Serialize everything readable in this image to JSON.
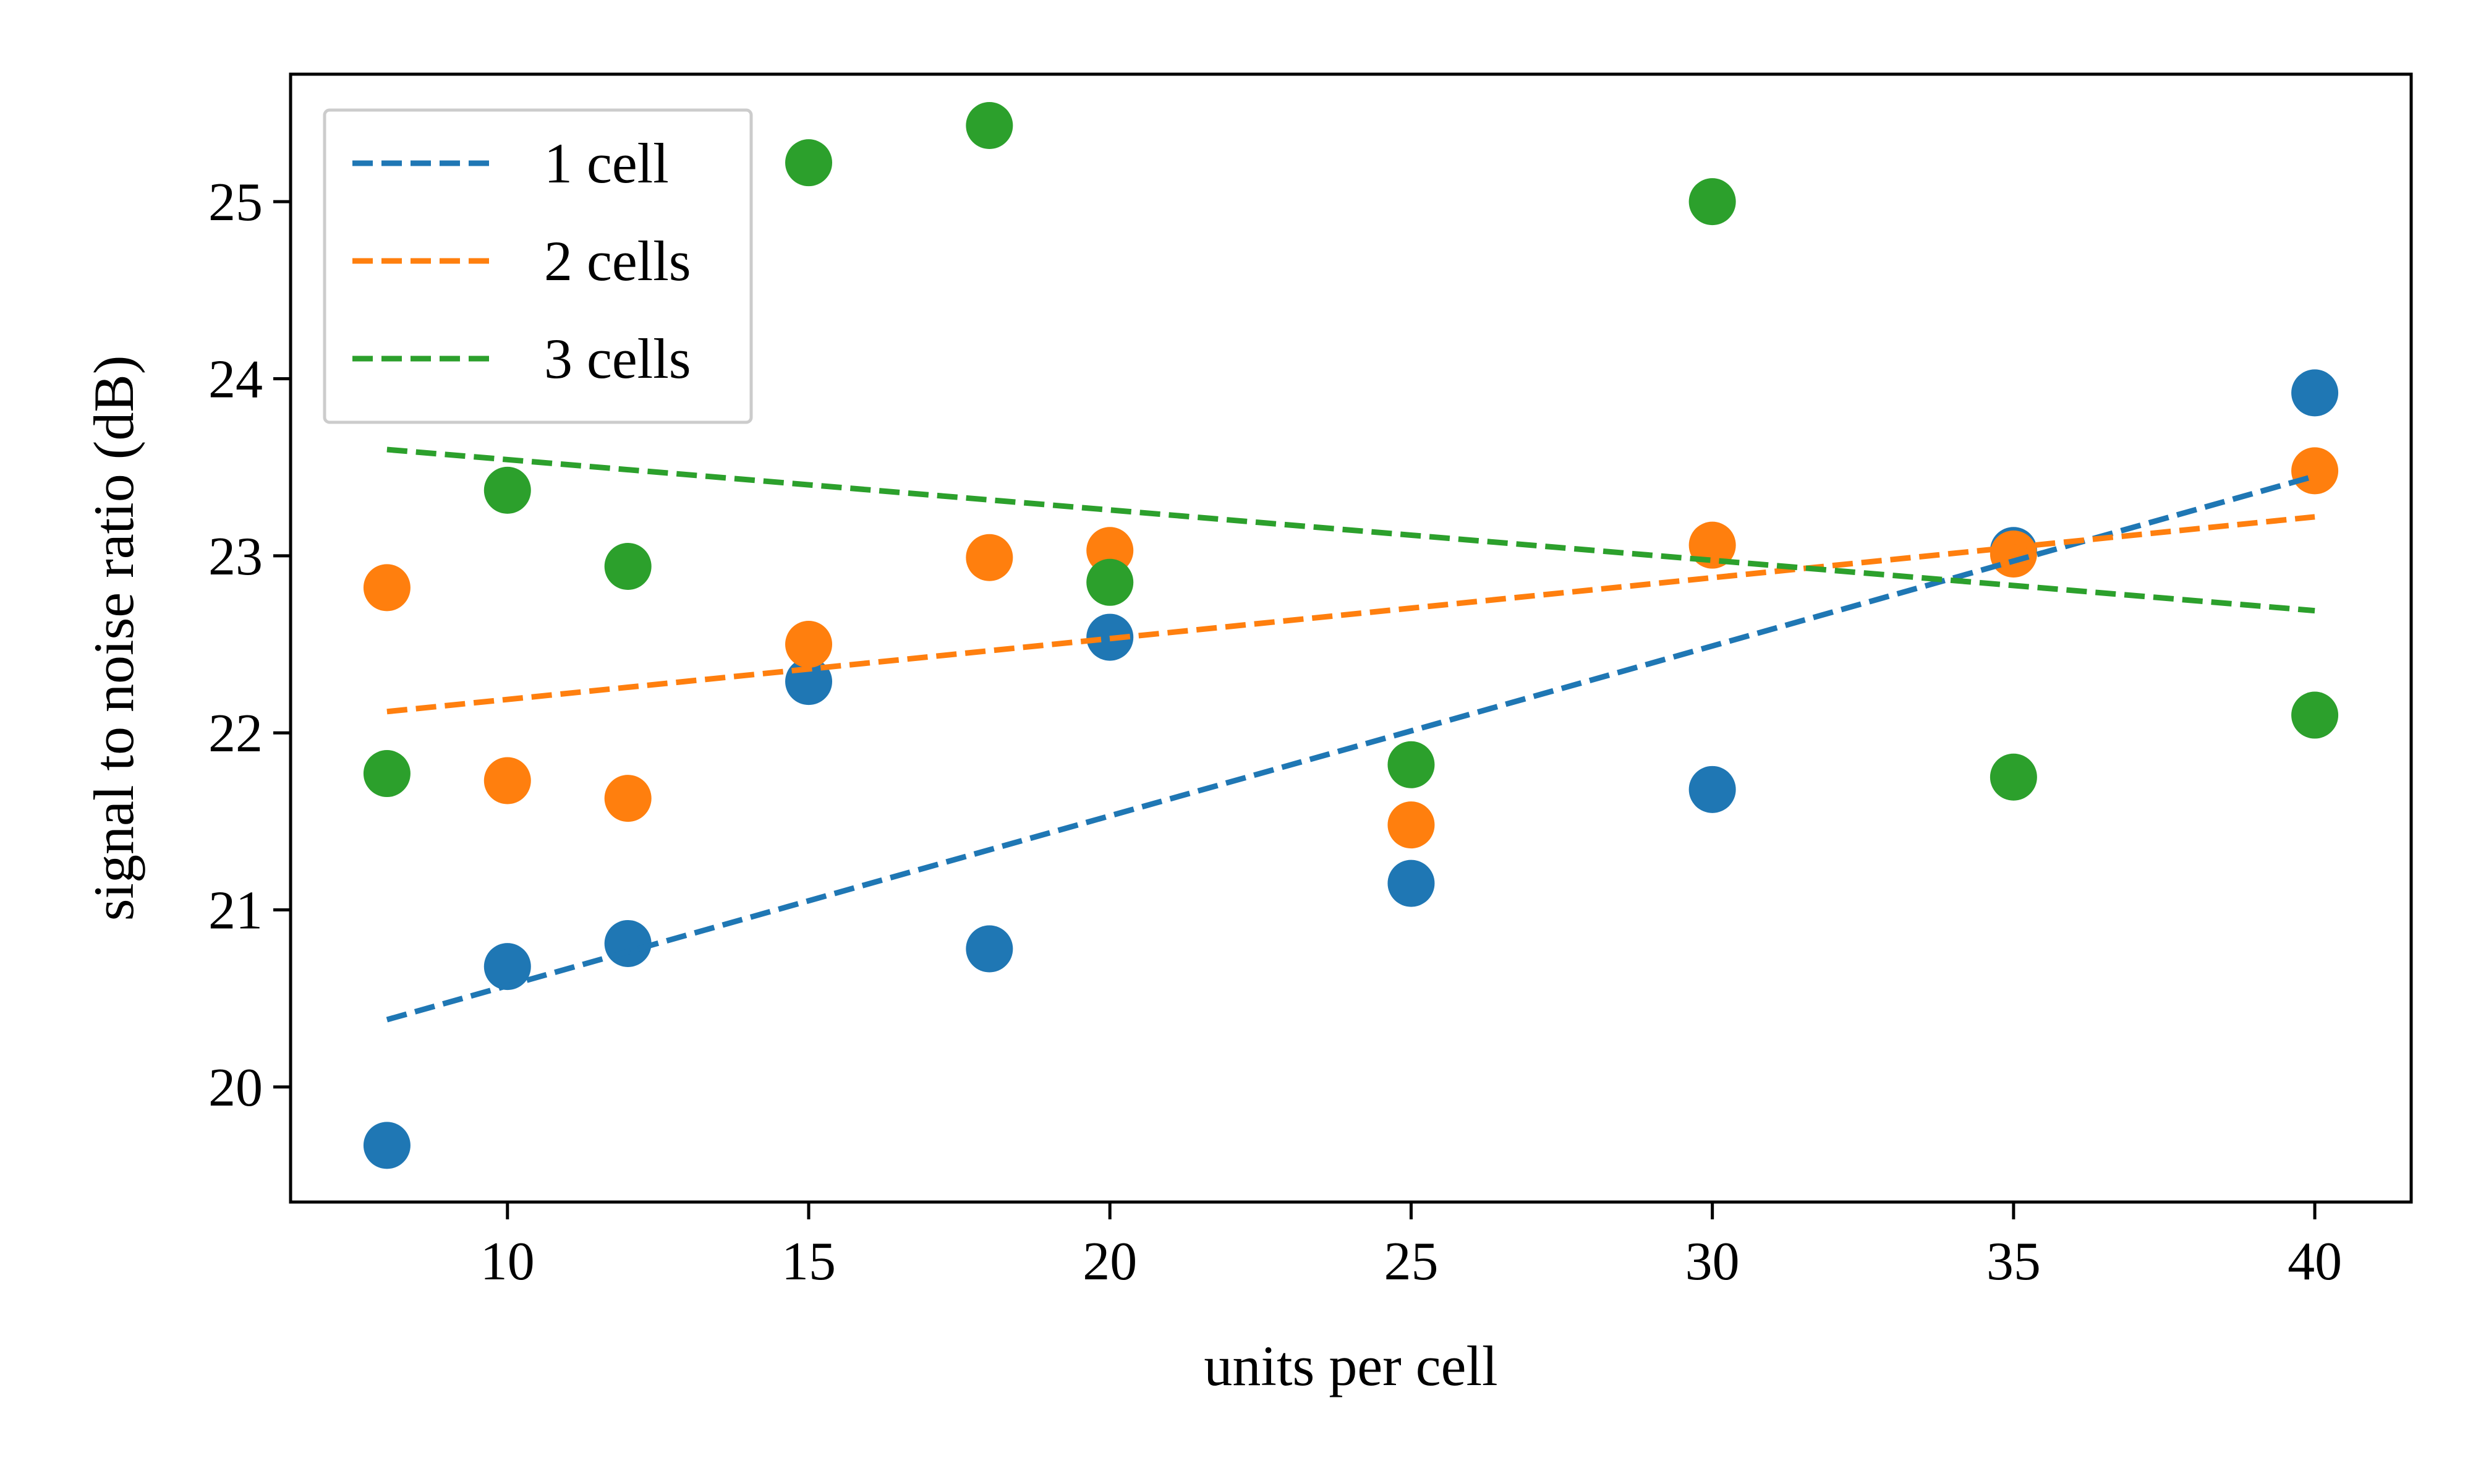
{
  "chart_data": {
    "type": "scatter",
    "xlabel": "units per cell",
    "ylabel": "signal to noise ratio (dB)",
    "xlim": [
      6.4,
      41.6
    ],
    "ylim": [
      19.35,
      25.72
    ],
    "x_ticks": [
      10,
      15,
      20,
      25,
      30,
      35,
      40
    ],
    "y_ticks": [
      20,
      21,
      22,
      23,
      24,
      25
    ],
    "grid": false,
    "legend_position": "top-left",
    "series": [
      {
        "name": "1 cell",
        "color": "#1f77b4",
        "points": [
          {
            "x": 8,
            "y": 19.67
          },
          {
            "x": 10,
            "y": 20.68
          },
          {
            "x": 12,
            "y": 20.81
          },
          {
            "x": 15,
            "y": 22.29
          },
          {
            "x": 18,
            "y": 20.78
          },
          {
            "x": 20,
            "y": 22.54
          },
          {
            "x": 25,
            "y": 21.15
          },
          {
            "x": 30,
            "y": 21.68
          },
          {
            "x": 35,
            "y": 23.03
          },
          {
            "x": 40,
            "y": 23.92
          }
        ],
        "fit": {
          "x": [
            8,
            40
          ],
          "y": [
            20.38,
            23.45
          ]
        }
      },
      {
        "name": "2 cells",
        "color": "#ff7f0e",
        "points": [
          {
            "x": 8,
            "y": 22.82
          },
          {
            "x": 10,
            "y": 21.73
          },
          {
            "x": 12,
            "y": 21.63
          },
          {
            "x": 15,
            "y": 22.5
          },
          {
            "x": 18,
            "y": 22.99
          },
          {
            "x": 20,
            "y": 23.03
          },
          {
            "x": 25,
            "y": 21.48
          },
          {
            "x": 30,
            "y": 23.06
          },
          {
            "x": 35,
            "y": 23.01
          },
          {
            "x": 40,
            "y": 23.48
          }
        ],
        "fit": {
          "x": [
            8,
            40
          ],
          "y": [
            22.12,
            23.22
          ]
        }
      },
      {
        "name": "3 cells",
        "color": "#2ca02c",
        "points": [
          {
            "x": 8,
            "y": 21.77
          },
          {
            "x": 10,
            "y": 23.37
          },
          {
            "x": 12,
            "y": 22.94
          },
          {
            "x": 15,
            "y": 25.22
          },
          {
            "x": 18,
            "y": 25.43
          },
          {
            "x": 20,
            "y": 22.85
          },
          {
            "x": 25,
            "y": 21.82
          },
          {
            "x": 30,
            "y": 25.0
          },
          {
            "x": 35,
            "y": 21.75
          },
          {
            "x": 40,
            "y": 22.1
          }
        ],
        "fit": {
          "x": [
            8,
            40
          ],
          "y": [
            23.6,
            22.69
          ]
        }
      }
    ]
  }
}
